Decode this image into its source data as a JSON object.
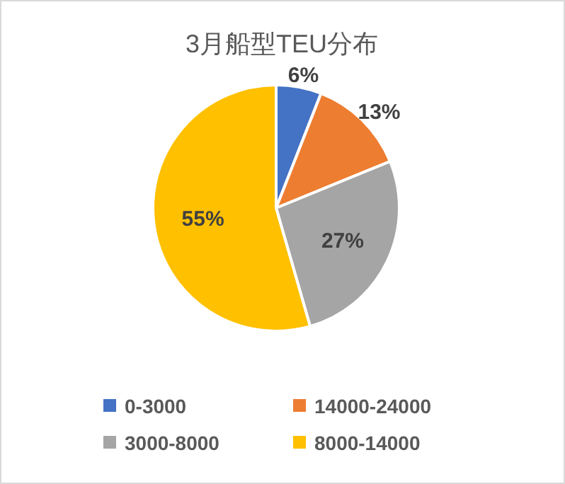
{
  "chart_data": {
    "type": "pie",
    "title": "3月船型TEU分布",
    "categories": [
      "0-3000",
      "14000-24000",
      "3000-8000",
      "8000-14000"
    ],
    "values": [
      6,
      13,
      27,
      55
    ],
    "colors": [
      "#4472c4",
      "#ed7d31",
      "#a5a5a5",
      "#ffc000"
    ],
    "value_labels": [
      "6%",
      "13%",
      "27%",
      "55%"
    ],
    "legend": "bottom"
  }
}
